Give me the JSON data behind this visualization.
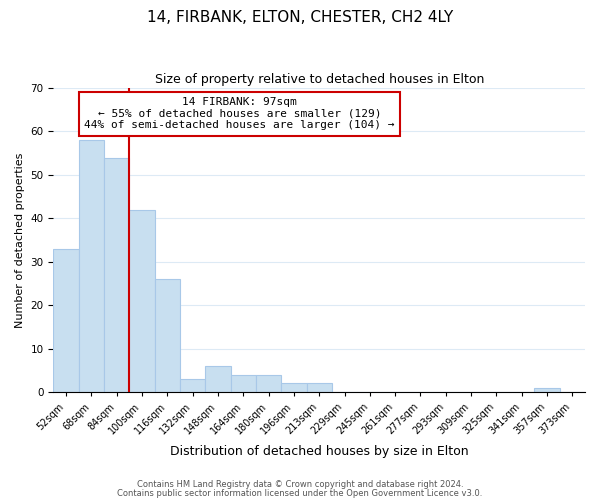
{
  "title": "14, FIRBANK, ELTON, CHESTER, CH2 4LY",
  "subtitle": "Size of property relative to detached houses in Elton",
  "xlabel": "Distribution of detached houses by size in Elton",
  "ylabel": "Number of detached properties",
  "bar_labels": [
    "52sqm",
    "68sqm",
    "84sqm",
    "100sqm",
    "116sqm",
    "132sqm",
    "148sqm",
    "164sqm",
    "180sqm",
    "196sqm",
    "213sqm",
    "229sqm",
    "245sqm",
    "261sqm",
    "277sqm",
    "293sqm",
    "309sqm",
    "325sqm",
    "341sqm",
    "357sqm",
    "373sqm"
  ],
  "bar_values": [
    33,
    58,
    54,
    42,
    26,
    3,
    6,
    4,
    4,
    2,
    2,
    0,
    0,
    0,
    0,
    0,
    0,
    0,
    0,
    1,
    0
  ],
  "bar_color": "#c8dff0",
  "bar_edge_color": "#a8c8e8",
  "vline_color": "#cc0000",
  "annotation_text_line1": "14 FIRBANK: 97sqm",
  "annotation_text_line2": "← 55% of detached houses are smaller (129)",
  "annotation_text_line3": "44% of semi-detached houses are larger (104) →",
  "annotation_box_color": "#ffffff",
  "annotation_border_color": "#cc0000",
  "ylim": [
    0,
    70
  ],
  "yticks": [
    0,
    10,
    20,
    30,
    40,
    50,
    60,
    70
  ],
  "footnote1": "Contains HM Land Registry data © Crown copyright and database right 2024.",
  "footnote2": "Contains public sector information licensed under the Open Government Licence v3.0.",
  "bg_color": "#ffffff",
  "grid_color": "#ddeaf5",
  "title_fontsize": 11,
  "subtitle_fontsize": 9,
  "xlabel_fontsize": 9,
  "ylabel_fontsize": 8,
  "tick_fontsize": 7,
  "annot_fontsize": 8,
  "footnote_fontsize": 6
}
